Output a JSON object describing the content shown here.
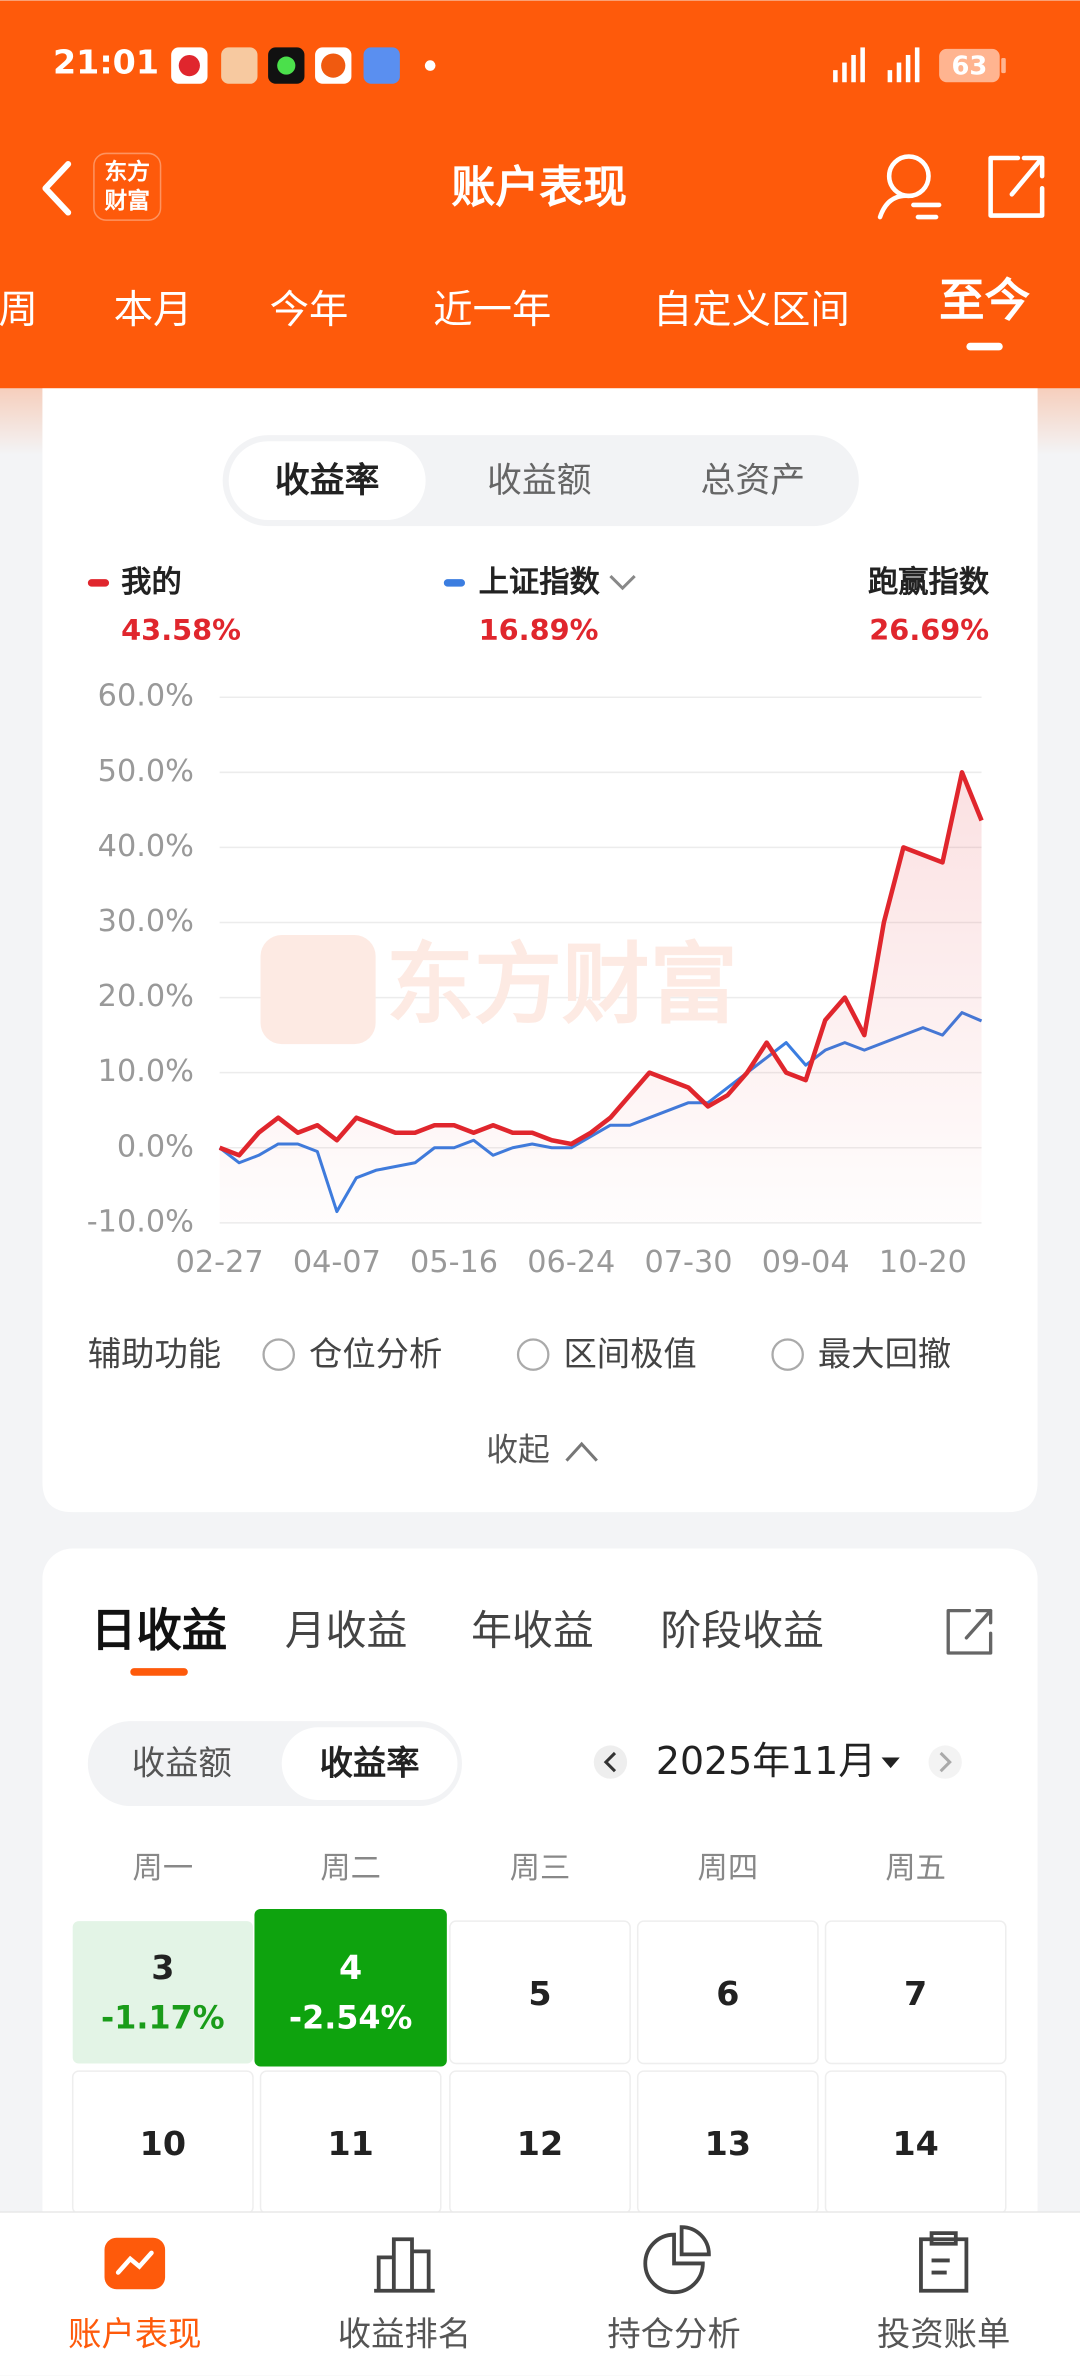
{
  "status_bar": {
    "time": "21:01",
    "battery": "63"
  },
  "header": {
    "logo": [
      "东方",
      "财富"
    ],
    "title": "账户表现"
  },
  "period_tabs": {
    "items": [
      "周",
      "本月",
      "今年",
      "近一年",
      "自定义区间",
      "至今"
    ],
    "active": 5
  },
  "metric_tabs": {
    "items": [
      "收益率",
      "收益额",
      "总资产"
    ],
    "active": 0
  },
  "chart_data": {
    "type": "line",
    "watermark": "东方财富",
    "categories": [
      "02-27",
      null,
      null,
      null,
      null,
      null,
      "04-07",
      null,
      null,
      null,
      null,
      null,
      "05-16",
      null,
      null,
      null,
      null,
      null,
      "06-24",
      null,
      null,
      null,
      null,
      null,
      "07-30",
      null,
      null,
      null,
      null,
      null,
      "09-04",
      null,
      null,
      null,
      null,
      null,
      "10-20",
      null,
      null,
      null
    ],
    "series": [
      {
        "name": "我的",
        "color": "#e0262d",
        "value_label": "43.58%",
        "fill": true,
        "values": [
          0,
          -1,
          2,
          4,
          2,
          3,
          1,
          4,
          3,
          2,
          2,
          3,
          3,
          2,
          3,
          2,
          2,
          1,
          0.5,
          2,
          4,
          7,
          10,
          9,
          8,
          5.5,
          7,
          10,
          14,
          10,
          9,
          17,
          20,
          15,
          30,
          40,
          39,
          38,
          50,
          43.58
        ]
      },
      {
        "name": "上证指数",
        "color": "#3b7de0",
        "value_label": "16.89%",
        "dropdown": true,
        "values": [
          0,
          -2,
          -1,
          0.5,
          0.5,
          -0.5,
          -8.5,
          -4,
          -3,
          -2.5,
          -2,
          0,
          0,
          1,
          -1,
          0,
          0.5,
          0,
          0,
          1.5,
          3,
          3,
          4,
          5,
          6,
          6,
          8,
          10,
          12,
          14,
          11,
          13,
          14,
          13,
          14,
          15,
          16,
          15,
          18,
          16.89
        ]
      }
    ],
    "outperform": {
      "label": "跑赢指数",
      "value_label": "26.69%"
    },
    "ylim": [
      -10,
      60
    ],
    "yticks": [
      {
        "value": -10,
        "label": "-10.0%"
      },
      {
        "value": 0,
        "label": "0.0%"
      },
      {
        "value": 10,
        "label": "10.0%"
      },
      {
        "value": 20,
        "label": "20.0%"
      },
      {
        "value": 30,
        "label": "30.0%"
      },
      {
        "value": 40,
        "label": "40.0%"
      },
      {
        "value": 50,
        "label": "50.0%"
      },
      {
        "value": 60,
        "label": "60.0%"
      }
    ],
    "grid": true
  },
  "tools": {
    "label": "辅助功能",
    "options": [
      "仓位分析",
      "区间极值",
      "最大回撤"
    ],
    "collapse": "收起"
  },
  "earnings_tabs": {
    "items": [
      "日收益",
      "月收益",
      "年收益",
      "阶段收益"
    ],
    "active": 0
  },
  "earnings_toggle": {
    "items": [
      "收益额",
      "收益率"
    ],
    "active": 1
  },
  "calendar": {
    "month": "2025年11月",
    "weekdays": [
      "周一",
      "周二",
      "周三",
      "周四",
      "周五"
    ],
    "rows": [
      [
        {
          "day": 3,
          "value": "-1.17%",
          "color": "#e3f4e6",
          "text_color": "#1a9c1a"
        },
        {
          "day": 4,
          "value": "-2.54%",
          "color": "#0ea30e",
          "text_color": "#ffffff"
        },
        {
          "day": 5
        },
        {
          "day": 6
        },
        {
          "day": 7
        }
      ],
      [
        {
          "day": 10
        },
        {
          "day": 11
        },
        {
          "day": 12
        },
        {
          "day": 13
        },
        {
          "day": 14
        }
      ]
    ]
  },
  "bottom_nav": {
    "items": [
      "账户表现",
      "收益排名",
      "持仓分析",
      "投资账单"
    ],
    "active": 0
  }
}
